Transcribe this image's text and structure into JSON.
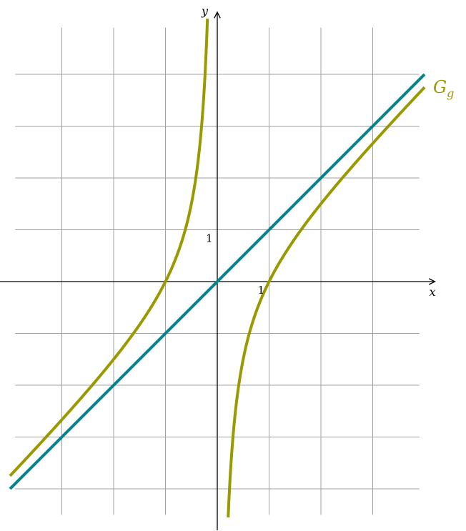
{
  "chart_data": {
    "type": "line",
    "xlabel": "x",
    "ylabel": "y",
    "xlim": [
      -4.2,
      4.2
    ],
    "ylim": [
      -4.8,
      5.2
    ],
    "grid": true,
    "grid_x_range": [
      -3.9,
      3.9
    ],
    "grid_y_range": [
      -4.5,
      4.9
    ],
    "grid_step": 1,
    "tick_labels": {
      "x": "1",
      "y": "1"
    },
    "series": [
      {
        "name": "",
        "label": "",
        "color": "#00868a",
        "kind": "function",
        "formula": "x",
        "x_range": [
          -4,
          4
        ]
      },
      {
        "name": "G_g",
        "label": "G",
        "label_subscript": "g",
        "color": "#999900",
        "kind": "function",
        "formula": "x - 1/x",
        "branches": [
          [
            -4,
            -0.19
          ],
          [
            0.21,
            4
          ]
        ]
      }
    ]
  }
}
